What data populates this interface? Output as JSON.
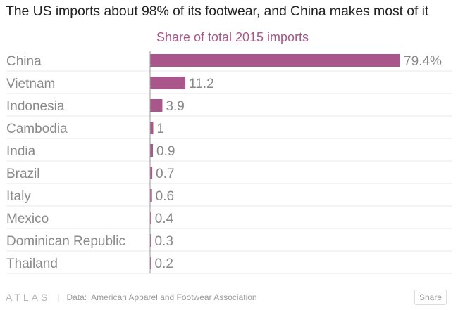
{
  "title": "The US imports about 98% of its footwear, and China makes most of it",
  "footer": {
    "logo": "ATLAS",
    "separator": "|",
    "source_label": "Data:",
    "source": "American Apparel and Footwear Association",
    "share_label": "Share"
  },
  "colors": {
    "bar": "#a9568a",
    "subtitle": "#a9568a",
    "label": "#8a8a8a",
    "value": "#888888",
    "grid": "#e9e9e9"
  },
  "chart_data": {
    "type": "bar",
    "orientation": "horizontal",
    "subtitle": "Share of total 2015 imports",
    "categories": [
      "China",
      "Vietnam",
      "Indonesia",
      "Cambodia",
      "India",
      "Brazil",
      "Italy",
      "Mexico",
      "Dominican Republic",
      "Thailand"
    ],
    "values": [
      79.4,
      11.2,
      3.9,
      1,
      0.9,
      0.7,
      0.6,
      0.4,
      0.3,
      0.2
    ],
    "value_labels": [
      "79.4%",
      "11.2",
      "3.9",
      "1",
      "0.9",
      "0.7",
      "0.6",
      "0.4",
      "0.3",
      "0.2"
    ],
    "xlim": [
      0,
      100
    ],
    "grid": true
  }
}
